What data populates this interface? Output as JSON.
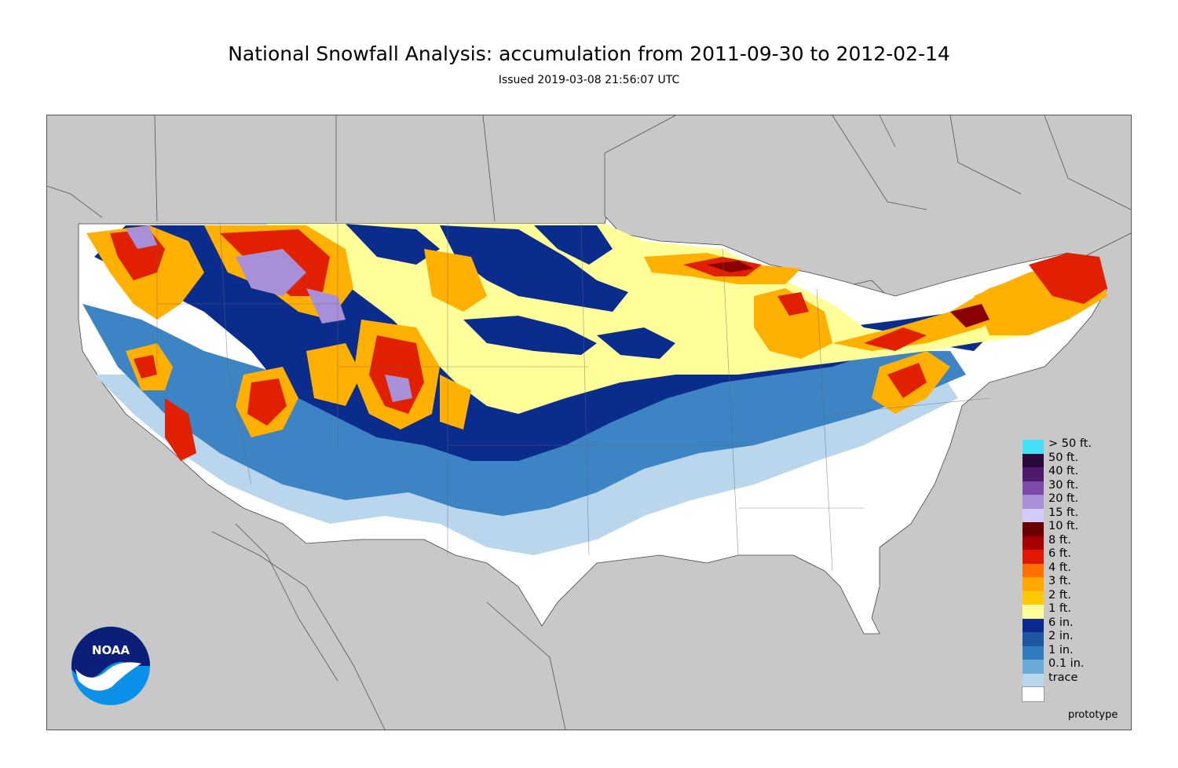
{
  "header": {
    "title": "National Snowfall Analysis: accumulation from 2011-09-30 to 2012-02-14",
    "subtitle": "Issued 2019-03-08 21:56:07 UTC"
  },
  "colors": {
    "land_outside": "#c8c8c8",
    "trace": "#ffffff",
    "light_blue": "#b9d6ec",
    "mid_blue": "#3c84c4",
    "dark_blue": "#0a2c8c",
    "yellow": "#ffff99",
    "orange": "#ffb000",
    "red": "#e02000",
    "dark_red": "#8a0000",
    "lavender": "#a890d8"
  },
  "legend": [
    {
      "label": "> 50 ft.",
      "color": "#44e0f8"
    },
    {
      "label": "50 ft.",
      "color": "#2a0838"
    },
    {
      "label": "40 ft.",
      "color": "#4e1a6e"
    },
    {
      "label": "30 ft.",
      "color": "#7c4aa8"
    },
    {
      "label": "20 ft.",
      "color": "#a890d8"
    },
    {
      "label": "15 ft.",
      "color": "#d4ccf8"
    },
    {
      "label": "10 ft.",
      "color": "#6a0000"
    },
    {
      "label": "8 ft.",
      "color": "#a80000"
    },
    {
      "label": "6 ft.",
      "color": "#e01800"
    },
    {
      "label": "4 ft.",
      "color": "#ff7000"
    },
    {
      "label": "3 ft.",
      "color": "#ffa800"
    },
    {
      "label": "2 ft.",
      "color": "#ffc800"
    },
    {
      "label": "1 ft.",
      "color": "#ffff99"
    },
    {
      "label": "6 in.",
      "color": "#0c2a8e"
    },
    {
      "label": "2 in.",
      "color": "#1e56a4"
    },
    {
      "label": "1 in.",
      "color": "#2f7cc0"
    },
    {
      "label": "0.1 in.",
      "color": "#6aaad8"
    },
    {
      "label": "trace",
      "color": "#b8d6ec"
    },
    {
      "label": "",
      "color": "#ffffff"
    }
  ],
  "footer": {
    "note": "prototype"
  },
  "logo": {
    "icon": "noaa-logo-icon",
    "text": "NOAA"
  }
}
